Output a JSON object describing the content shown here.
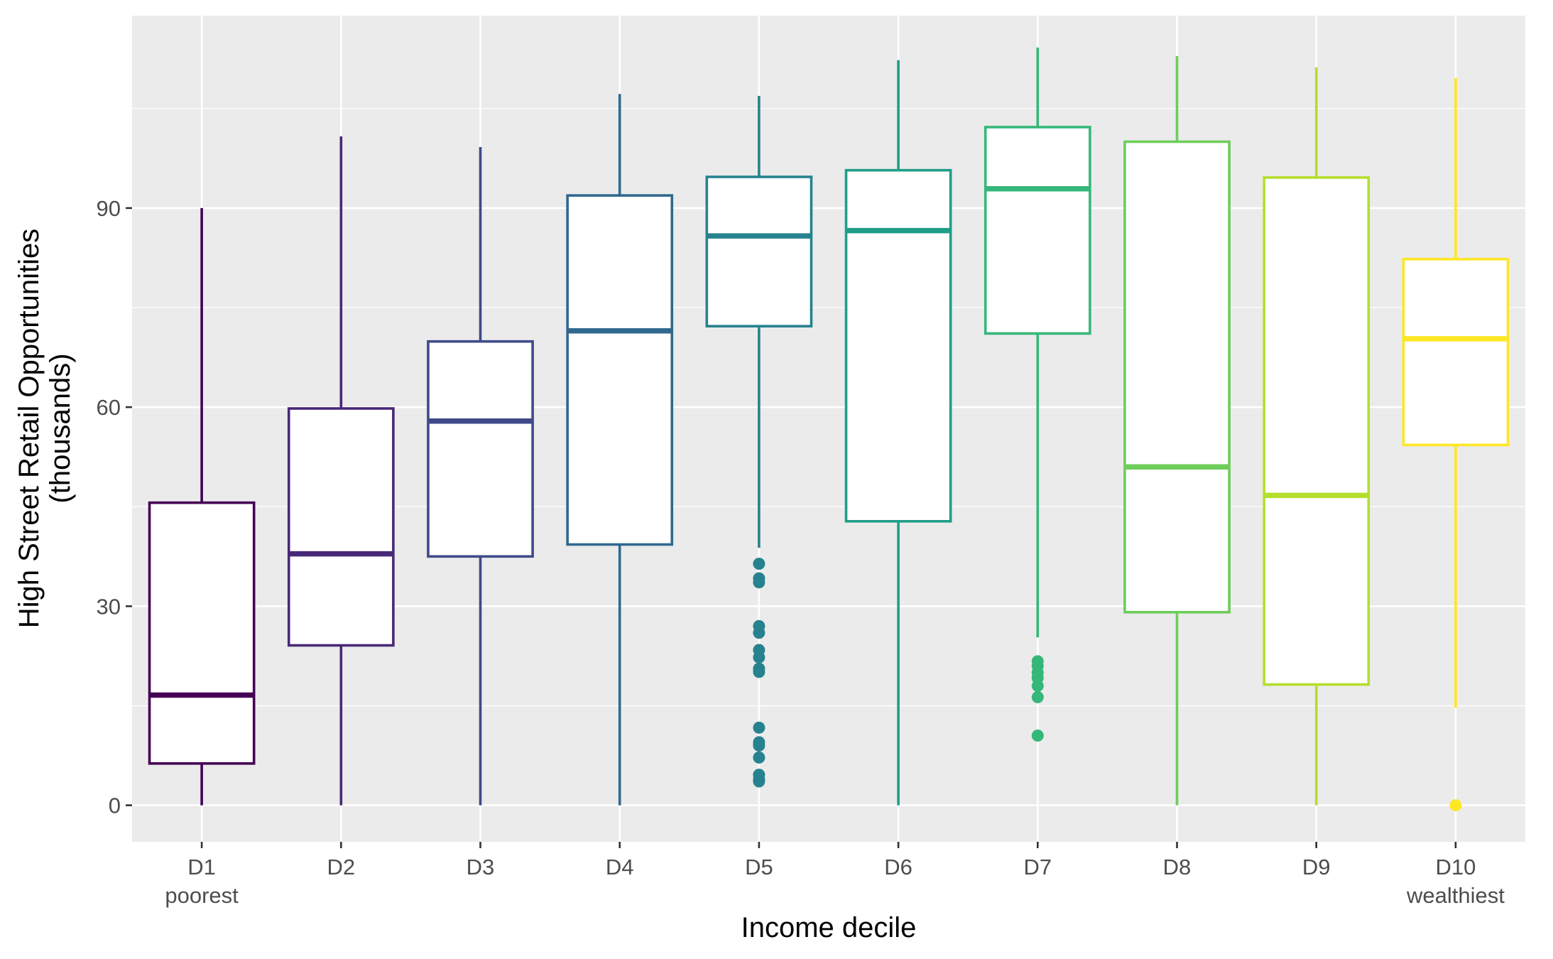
{
  "chart_data": {
    "type": "boxplot",
    "title": "",
    "xlabel": "Income decile",
    "ylabel_lines": [
      "High Street Retail Opportunities",
      "(thousands)"
    ],
    "ylim": [
      -5.5,
      119
    ],
    "yticks": [
      0,
      30,
      60,
      90
    ],
    "ytick_labels": [
      "0",
      "30",
      "60",
      "90"
    ],
    "grid": true,
    "legend": "none",
    "categories": [
      {
        "label": "D1",
        "sublabel": "poorest"
      },
      {
        "label": "D2",
        "sublabel": ""
      },
      {
        "label": "D3",
        "sublabel": ""
      },
      {
        "label": "D4",
        "sublabel": ""
      },
      {
        "label": "D5",
        "sublabel": ""
      },
      {
        "label": "D6",
        "sublabel": ""
      },
      {
        "label": "D7",
        "sublabel": ""
      },
      {
        "label": "D8",
        "sublabel": ""
      },
      {
        "label": "D9",
        "sublabel": ""
      },
      {
        "label": "D10",
        "sublabel": "wealthiest"
      }
    ],
    "boxes": [
      {
        "color": "#440154",
        "whisker_low": 0,
        "q1": 6.3,
        "median": 16.6,
        "q3": 45.6,
        "whisker_high": 90.0,
        "outliers": []
      },
      {
        "color": "#482878",
        "whisker_low": 0,
        "q1": 24.1,
        "median": 37.9,
        "q3": 59.8,
        "whisker_high": 100.8,
        "outliers": []
      },
      {
        "color": "#3E4A89",
        "whisker_low": 0,
        "q1": 37.5,
        "median": 57.9,
        "q3": 69.9,
        "whisker_high": 99.2,
        "outliers": []
      },
      {
        "color": "#31688E",
        "whisker_low": 0,
        "q1": 39.3,
        "median": 71.5,
        "q3": 91.9,
        "whisker_high": 107.2,
        "outliers": []
      },
      {
        "color": "#26828E",
        "whisker_low": 38.8,
        "q1": 72.2,
        "median": 85.8,
        "q3": 94.7,
        "whisker_high": 106.9,
        "outliers": [
          36.4,
          34.2,
          33.6,
          27.0,
          26.0,
          23.4,
          22.3,
          20.6,
          20.1,
          11.7,
          9.5,
          9.0,
          7.2,
          4.6,
          3.9,
          3.6
        ]
      },
      {
        "color": "#1F9E89",
        "whisker_low": 0,
        "q1": 42.8,
        "median": 86.6,
        "q3": 95.7,
        "whisker_high": 112.3,
        "outliers": []
      },
      {
        "color": "#35B779",
        "whisker_low": 25.3,
        "q1": 71.1,
        "median": 92.9,
        "q3": 102.2,
        "whisker_high": 114.2,
        "outliers": [
          21.7,
          21.0,
          20.0,
          19.2,
          18.0,
          16.3,
          10.5
        ]
      },
      {
        "color": "#6DCD59",
        "whisker_low": 0,
        "q1": 29.1,
        "median": 51.0,
        "q3": 100.0,
        "whisker_high": 112.9,
        "outliers": []
      },
      {
        "color": "#B4DE2C",
        "whisker_low": 0,
        "q1": 18.2,
        "median": 46.7,
        "q3": 94.6,
        "whisker_high": 111.2,
        "outliers": []
      },
      {
        "color": "#FDE725",
        "whisker_low": 14.7,
        "q1": 54.3,
        "median": 70.3,
        "q3": 82.3,
        "whisker_high": 109.6,
        "outliers": [
          0
        ]
      }
    ]
  }
}
